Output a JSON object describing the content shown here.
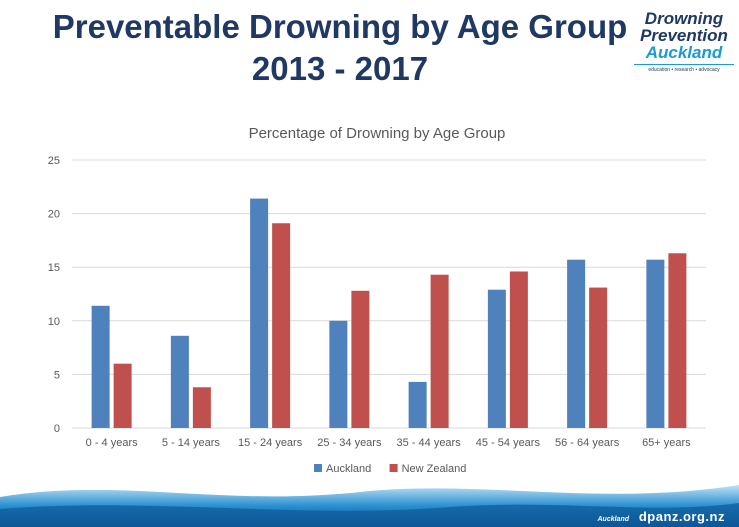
{
  "slide": {
    "title_line1": "Preventable Drowning by Age Group",
    "title_line2": "2013 - 2017"
  },
  "logo": {
    "line1": "Drowning",
    "line2": "Prevention",
    "line3": "Auckland",
    "tagline": "education • research • advocacy"
  },
  "footer": {
    "url": "dpanz.org.nz",
    "badge": "Auckland"
  },
  "colors": {
    "title": "#1f3864",
    "auckland": "#4f81bd",
    "new_zealand": "#c0504d",
    "grid": "#d9d9d9",
    "axis_text": "#595959"
  },
  "chart_data": {
    "type": "bar",
    "title": "Percentage of Drowning by Age Group",
    "categories": [
      "0 - 4 years",
      "5 - 14 years",
      "15 - 24 years",
      "25 - 34 years",
      "35 - 44 years",
      "45 - 54 years",
      "56 - 64 years",
      "65+ years"
    ],
    "series": [
      {
        "name": "Auckland",
        "values": [
          11.4,
          8.6,
          21.4,
          10.0,
          4.3,
          12.9,
          15.7,
          15.7
        ]
      },
      {
        "name": "New Zealand",
        "values": [
          6.0,
          3.8,
          19.1,
          12.8,
          14.3,
          14.6,
          13.1,
          16.3
        ]
      }
    ],
    "ylim": [
      0,
      25
    ],
    "yticks": [
      0,
      5,
      10,
      15,
      20,
      25
    ],
    "grid": true,
    "legend_position": "bottom"
  }
}
